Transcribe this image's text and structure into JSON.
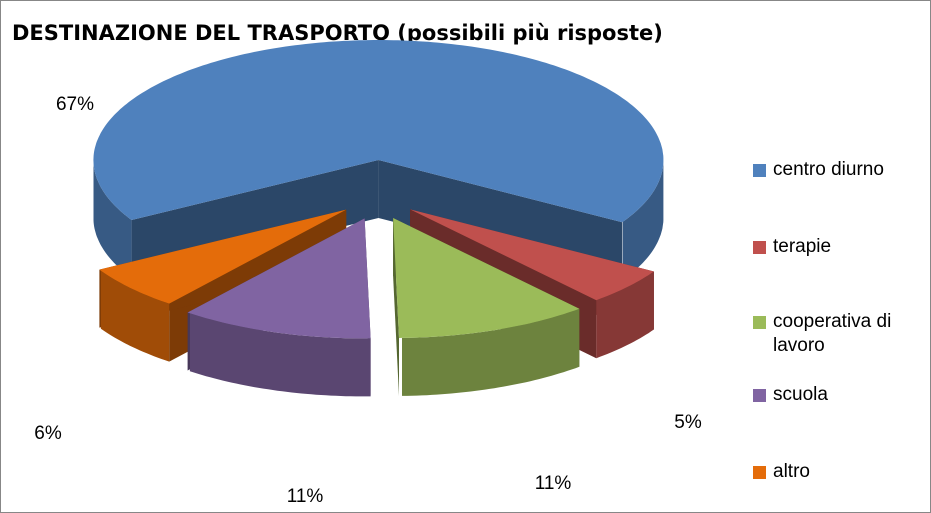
{
  "chart_data": {
    "type": "pie3d",
    "title": "DESTINAZIONE DEL TRASPORTO (possibili più risposte)",
    "categories": [
      "centro diurno",
      "terapie",
      "cooperativa di lavoro",
      "scuola",
      "altro"
    ],
    "values": [
      67,
      5,
      11,
      11,
      6
    ],
    "value_labels": [
      "67%",
      "5%",
      "11%",
      "11%",
      "6%"
    ],
    "colors": [
      "#4f81bd",
      "#c0504d",
      "#9bbb59",
      "#8064a2",
      "#e46c0a"
    ],
    "legend": "right"
  }
}
